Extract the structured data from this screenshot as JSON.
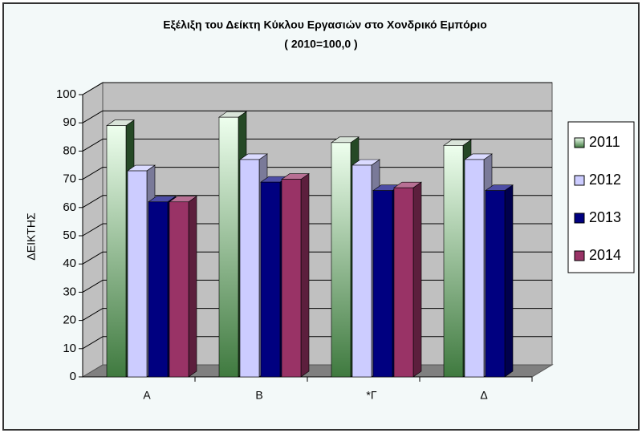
{
  "chart_data": {
    "type": "bar3d",
    "title": "Εξέλιξη του Δείκτη Κύκλου Εργασιών στο Χονδρικό Εμπόριο",
    "subtitle": "( 2010=100,0 )",
    "y_label": "ΔΕΙΚΤΗΣ",
    "categories": [
      "A",
      "B",
      "*Γ",
      "Δ"
    ],
    "series": [
      {
        "name": "2011",
        "color": "#3f7a3f",
        "values": [
          89,
          92,
          83,
          82
        ]
      },
      {
        "name": "2012",
        "color": "#ccccff",
        "values": [
          73,
          77,
          75,
          77
        ]
      },
      {
        "name": "2013",
        "color": "#000080",
        "values": [
          62,
          69,
          66,
          66
        ]
      },
      {
        "name": "2014",
        "color": "#993366",
        "values": [
          62,
          70,
          67,
          null
        ]
      }
    ],
    "ylim": [
      0,
      100
    ],
    "yticks": [
      0,
      10,
      20,
      30,
      40,
      50,
      60,
      70,
      80,
      90,
      100
    ],
    "grid": true,
    "legend": "right"
  }
}
